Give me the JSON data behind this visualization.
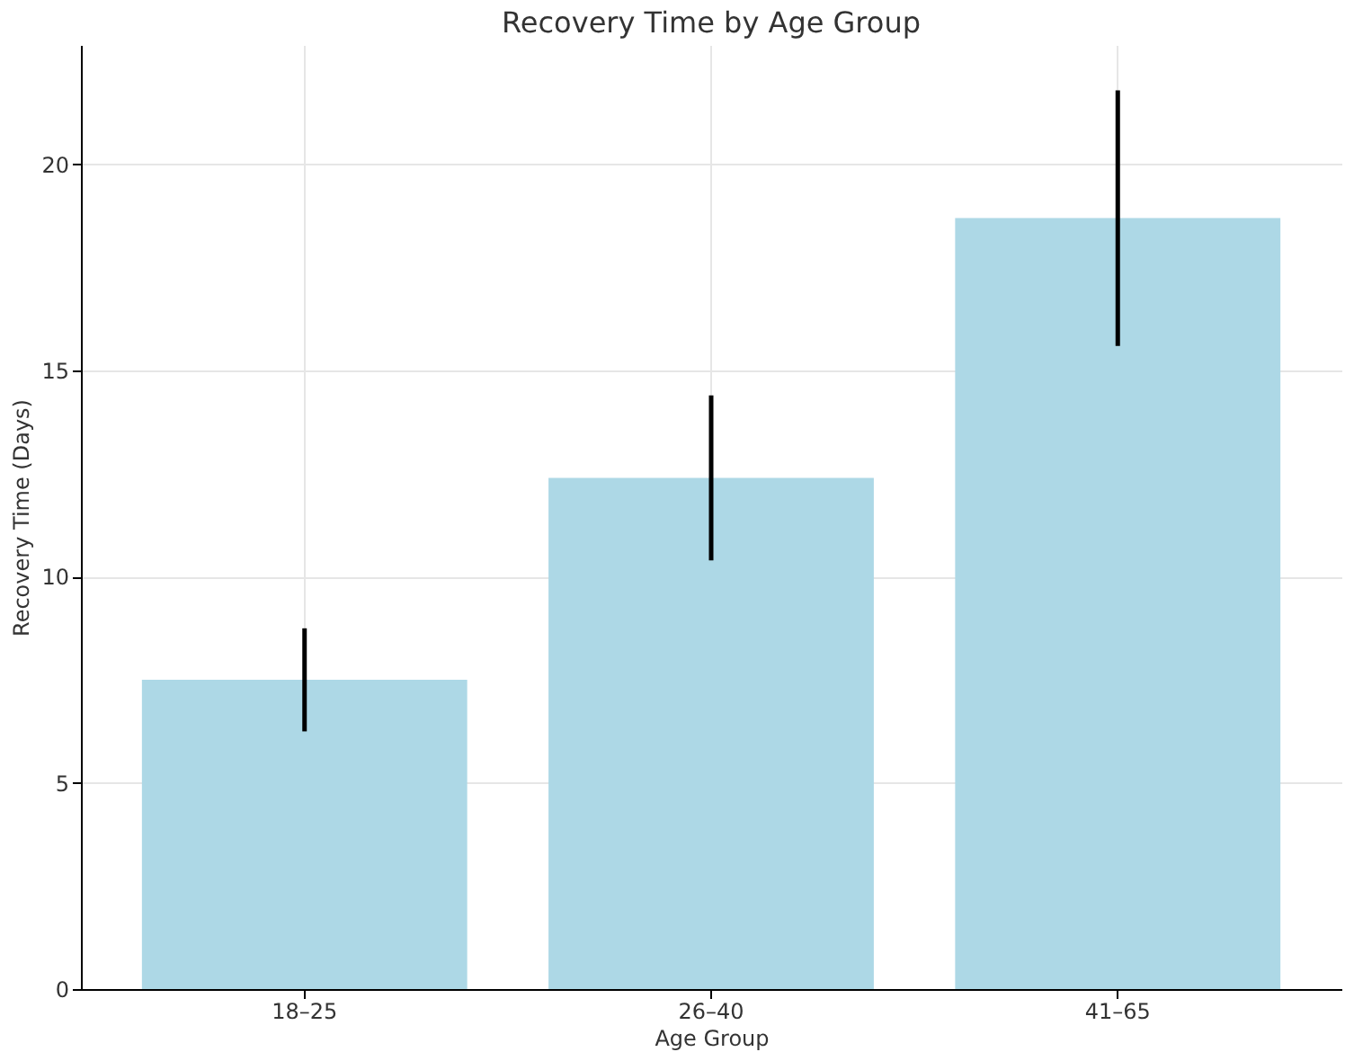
{
  "chart_data": {
    "type": "bar",
    "title": "Recovery Time by Age Group",
    "xlabel": "Age Group",
    "ylabel": "Recovery Time (Days)",
    "categories": [
      "18–25",
      "26–40",
      "41–65"
    ],
    "values": [
      7.5,
      12.4,
      18.7
    ],
    "errors": [
      1.25,
      2.0,
      3.1
    ],
    "color": "#add8e6",
    "ylim": [
      0,
      22.9
    ],
    "yticks": [
      0,
      5,
      10,
      15,
      20
    ],
    "grid": true
  }
}
